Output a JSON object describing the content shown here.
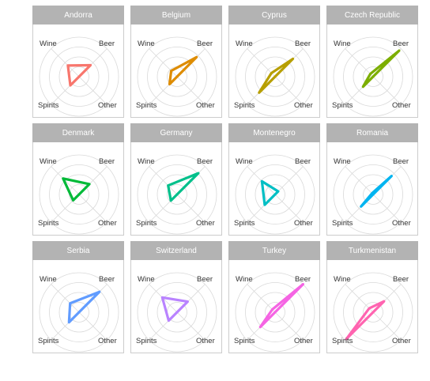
{
  "chart_data": {
    "type": "radar",
    "axes": [
      "Beer",
      "Other",
      "Spirits",
      "Wine"
    ],
    "rmax": 1,
    "grid_circles": [
      0.25,
      0.5,
      0.75,
      1.0
    ],
    "grid": true,
    "panels": [
      {
        "name": "Andorra",
        "color": "#F8766D",
        "values": {
          "Beer": 0.41,
          "Other": 0.0,
          "Spirits": 0.31,
          "Wine": 0.4
        }
      },
      {
        "name": "Belgium",
        "color": "#DE8C00",
        "values": {
          "Beer": 0.7,
          "Other": 0.0,
          "Spirits": 0.27,
          "Wine": 0.21
        }
      },
      {
        "name": "Cyprus",
        "color": "#B79F00",
        "values": {
          "Beer": 0.64,
          "Other": 0.0,
          "Spirits": 0.57,
          "Wine": 0.13
        }
      },
      {
        "name": "Czech Republic",
        "color": "#7CAE00",
        "values": {
          "Beer": 0.93,
          "Other": 0.0,
          "Spirits": 0.36,
          "Wine": 0.1
        }
      },
      {
        "name": "Denmark",
        "color": "#00BA38",
        "values": {
          "Beer": 0.37,
          "Other": 0.0,
          "Spirits": 0.21,
          "Wine": 0.57
        }
      },
      {
        "name": "Germany",
        "color": "#00C08B",
        "values": {
          "Beer": 0.76,
          "Other": 0.0,
          "Spirits": 0.22,
          "Wine": 0.32
        }
      },
      {
        "name": "Montenegro",
        "color": "#00BFC4",
        "values": {
          "Beer": 0.11,
          "Other": 0.0,
          "Spirits": 0.37,
          "Wine": 0.47
        }
      },
      {
        "name": "Romania",
        "color": "#00B4F0",
        "values": {
          "Beer": 0.66,
          "Other": 0.0,
          "Spirits": 0.43,
          "Wine": 0.04
        }
      },
      {
        "name": "Serbia",
        "color": "#619CFF",
        "values": {
          "Beer": 0.73,
          "Other": 0.0,
          "Spirits": 0.36,
          "Wine": 0.32
        }
      },
      {
        "name": "Switzerland",
        "color": "#B983FF",
        "values": {
          "Beer": 0.38,
          "Other": 0.0,
          "Spirits": 0.3,
          "Wine": 0.53
        }
      },
      {
        "name": "Turkey",
        "color": "#F564E3",
        "values": {
          "Beer": 1.0,
          "Other": 0.0,
          "Spirits": 0.53,
          "Wine": 0.1
        }
      },
      {
        "name": "Turkmenistan",
        "color": "#FF64B0",
        "values": {
          "Beer": 0.39,
          "Other": 0.0,
          "Spirits": 0.96,
          "Wine": 0.14
        }
      }
    ]
  }
}
